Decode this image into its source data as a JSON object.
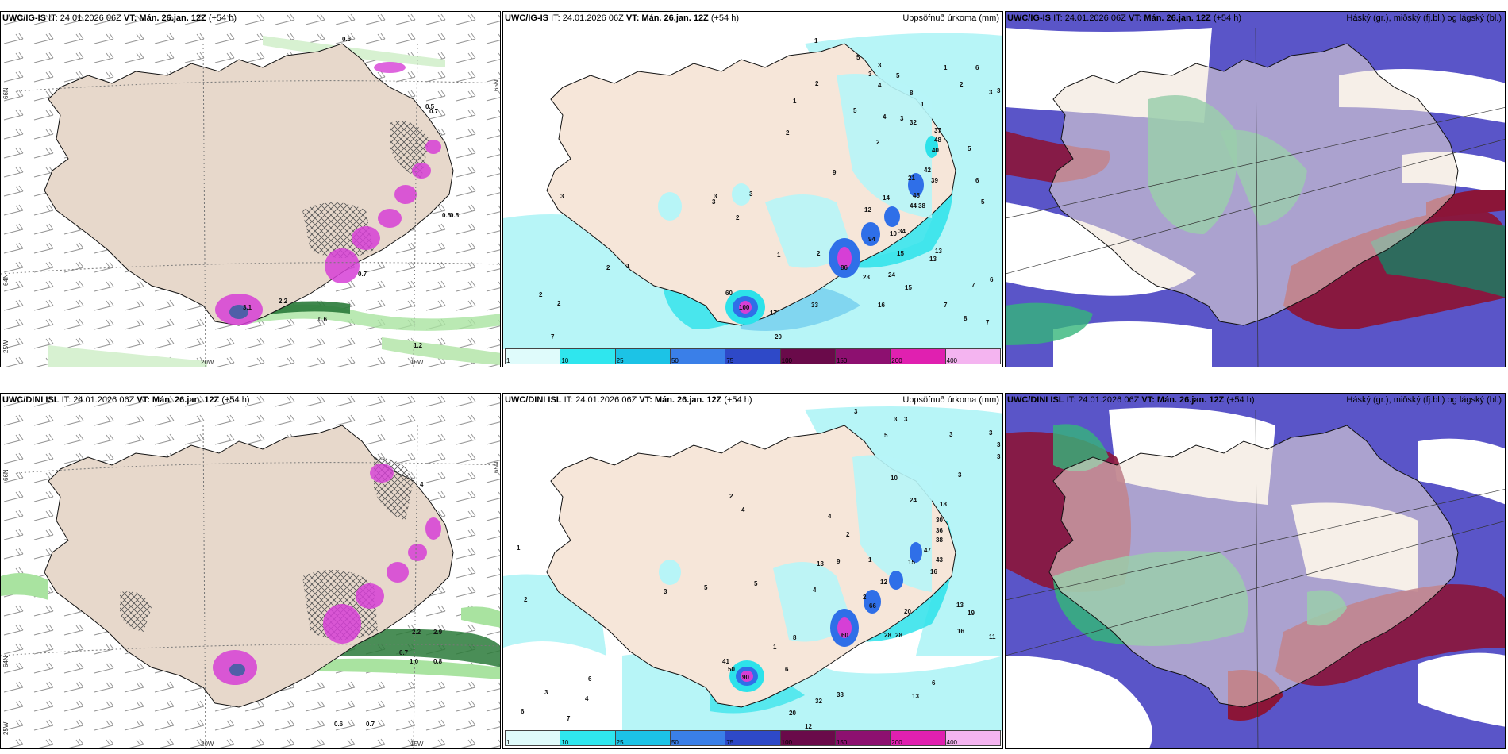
{
  "top_row": {
    "wind": {
      "model": "UWC/IG-IS",
      "it": "IT: 24.01.2026 06Z",
      "vt": "VT: Mán. 26.jan. 12Z",
      "lead": "(+54 h)",
      "labels": [
        "0.6",
        "0.5",
        "0.7",
        "0.5",
        "0.5",
        "0.6",
        "0.7",
        "1.2",
        "2.2",
        "3.1"
      ],
      "ticks_lon": [
        "20W",
        "15W"
      ],
      "ticks_lat": [
        "66N",
        "64N",
        "25W",
        "65N"
      ]
    },
    "precip": {
      "model": "UWC/IG-IS",
      "it": "IT: 24.01.2026 06Z",
      "vt": "VT: Mán. 26.jan. 12Z",
      "lead": "(+54 h)",
      "field_label": "Uppsöfnuð úrkoma (mm)",
      "values": [
        "1",
        "5",
        "3",
        "1",
        "6",
        "3",
        "2",
        "1",
        "3",
        "5",
        "2",
        "4",
        "9",
        "3",
        "8",
        "1",
        "6",
        "5",
        "5",
        "7",
        "5",
        "3",
        "4",
        "2",
        "32",
        "37",
        "48",
        "40",
        "42",
        "39",
        "21",
        "45",
        "44",
        "38",
        "34",
        "14",
        "12",
        "13",
        "13",
        "15",
        "24",
        "23",
        "2",
        "1",
        "2",
        "3",
        "3",
        "3",
        "2",
        "1",
        "2",
        "2",
        "7",
        "10",
        "16",
        "33",
        "15",
        "20",
        "17",
        "6",
        "7",
        "8",
        "7",
        "60",
        "100",
        "86",
        "94",
        "2",
        "3"
      ],
      "colorbar": [
        "1",
        "10",
        "25",
        "50",
        "75",
        "100",
        "150",
        "200",
        "400"
      ]
    },
    "cloud": {
      "model": "UWC/IG-IS",
      "it": "IT: 24.01.2026 06Z",
      "vt": "VT: Mán. 26.jan. 12Z",
      "lead": "(+54 h)",
      "field_label": "Háský (gr.), miðský (fj.bl.) og lágský (bl.)"
    }
  },
  "bottom_row": {
    "wind": {
      "model": "UWC/DINI ISL",
      "it": "IT: 24.01.2026 06Z",
      "vt": "VT: Mán. 26.jan. 12Z",
      "lead": "(+54 h)",
      "labels": [
        "4",
        "0.7",
        "1.0",
        "0.8",
        "2.9",
        "2.2",
        "0.6",
        "0.7"
      ],
      "ticks_lon": [
        "20W",
        "15W"
      ],
      "ticks_lat": [
        "66N",
        "64N",
        "25W",
        "65N"
      ]
    },
    "precip": {
      "model": "UWC/DINI ISL",
      "it": "IT: 24.01.2026 06Z",
      "vt": "VT: Mán. 26.jan. 12Z",
      "lead": "(+54 h)",
      "field_label": "Uppsöfnuð úrkoma (mm)",
      "values": [
        "3",
        "3",
        "3",
        "3",
        "3",
        "5",
        "3",
        "2",
        "3",
        "4",
        "3",
        "10",
        "24",
        "18",
        "30",
        "36",
        "38",
        "47",
        "43",
        "15",
        "12",
        "16",
        "13",
        "19",
        "20",
        "28",
        "28",
        "6",
        "13",
        "4",
        "5",
        "8",
        "13",
        "9",
        "1",
        "4",
        "6",
        "32",
        "33",
        "20",
        "12",
        "41",
        "50",
        "6",
        "3",
        "4",
        "6",
        "7",
        "2",
        "1",
        "5",
        "3",
        "11",
        "2",
        "2",
        "1",
        "16",
        "90",
        "60",
        "66"
      ],
      "colorbar": [
        "1",
        "10",
        "25",
        "50",
        "75",
        "100",
        "150",
        "200",
        "400"
      ]
    },
    "cloud": {
      "model": "UWC/DINI ISL",
      "it": "IT: 24.01.2026 06Z",
      "vt": "VT: Mán. 26.jan. 12Z",
      "lead": "(+54 h)",
      "field_label": "Háský (gr.), miðský (fj.bl.) og lágský (bl.)"
    }
  },
  "colors": {
    "land": "#efe1d6",
    "sea": "#ffffff",
    "precip_light": "#b7f5f7",
    "precip_cyan": "#2de2ea",
    "precip_blue": "#2f6fe8",
    "precip_magenta": "#d63fd6",
    "wind_green": "#2a9a3a",
    "cloud_high": "#8b1538",
    "cloud_mid": "#35b57a",
    "cloud_low": "#5a55c8",
    "colorbar": [
      "#dffbfb",
      "#2fe6ee",
      "#1cc3e6",
      "#3a7fe8",
      "#2e49c8",
      "#6a0a4a",
      "#8d1070",
      "#e020b0",
      "#f4b4f0"
    ]
  }
}
